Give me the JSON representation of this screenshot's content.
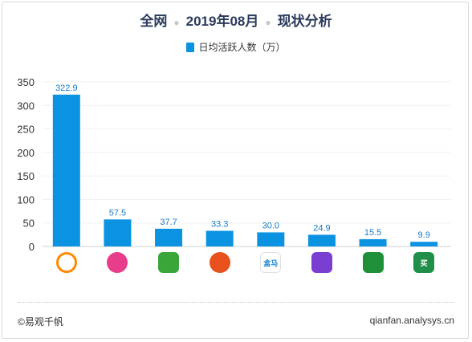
{
  "header": {
    "part1": "全网",
    "part2": "2019年08月",
    "part3": "现状分析"
  },
  "legend": {
    "label": "日均活跃人数（万）"
  },
  "footer": {
    "copyright": "©易观千帆",
    "source": "qianfan.analysys.cn"
  },
  "chart_data": {
    "type": "bar",
    "categories": [
      "",
      "",
      "",
      "",
      "",
      "",
      "",
      ""
    ],
    "series": [
      {
        "name": "日均活跃人数（万）",
        "values": [
          322.9,
          57.5,
          37.7,
          33.3,
          30.0,
          24.9,
          15.5,
          9.9
        ],
        "labels": [
          "322.9",
          "57.5",
          "37.7",
          "33.3",
          "30.0",
          "24.9",
          "15.5",
          "9.9"
        ]
      }
    ],
    "ylim": [
      0,
      350
    ],
    "yticks": [
      0,
      50,
      100,
      150,
      200,
      250,
      300,
      350
    ],
    "grid": true,
    "legend_position": "top-center",
    "bar_color": "#0b93e1",
    "icons": [
      {
        "name": "flame-app-icon",
        "color": "#ff8a00"
      },
      {
        "name": "pink-circle-app-icon",
        "color": "#e83d8b"
      },
      {
        "name": "green-cartoon-app-icon",
        "color": "#3aa63a"
      },
      {
        "name": "orange-circle-app-icon",
        "color": "#e8501c"
      },
      {
        "name": "hema-app-icon",
        "color": "#1e88d4",
        "text": "盒马"
      },
      {
        "name": "purple-app-icon",
        "color": "#7a3fd0"
      },
      {
        "name": "radish-app-icon",
        "color": "#1f8f3a"
      },
      {
        "name": "mai-app-icon",
        "color": "#1f8f4a",
        "text": "买"
      }
    ]
  }
}
